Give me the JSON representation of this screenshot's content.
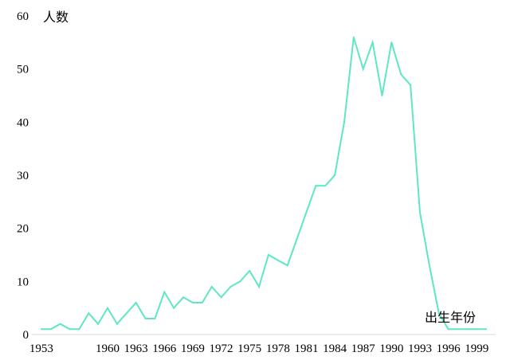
{
  "chart_data": {
    "type": "line",
    "title": "",
    "ylabel": "人数",
    "xlabel": "出生年份",
    "ylim": [
      0,
      60
    ],
    "yticks": [
      0,
      10,
      20,
      30,
      40,
      50,
      60
    ],
    "xlim": [
      1952,
      2001
    ],
    "xticks": [
      1953,
      1960,
      1963,
      1966,
      1969,
      1972,
      1975,
      1978,
      1981,
      1984,
      1987,
      1990,
      1993,
      1996,
      1999
    ],
    "grid": false,
    "line_color": "#5ee6c5",
    "series": [
      {
        "x": [
          1953,
          1954,
          1955,
          1956,
          1957,
          1958,
          1959,
          1960,
          1961,
          1962,
          1963,
          1964,
          1965,
          1966,
          1967,
          1968,
          1969,
          1970,
          1971,
          1972,
          1973,
          1974,
          1975,
          1976,
          1977,
          1978,
          1979,
          1980,
          1981,
          1982,
          1983,
          1984,
          1985,
          1986,
          1987,
          1988,
          1989,
          1990,
          1991,
          1992,
          1993,
          1994,
          1995,
          1996,
          1997,
          1998,
          1999,
          2000
        ],
        "values": [
          1,
          1,
          2,
          1,
          1,
          4,
          2,
          5,
          2,
          4,
          6,
          3,
          3,
          8,
          5,
          7,
          6,
          6,
          9,
          7,
          9,
          10,
          12,
          9,
          15,
          14,
          13,
          18,
          23,
          28,
          28,
          30,
          40,
          56,
          50,
          55,
          45,
          55,
          49,
          47,
          23,
          13,
          4,
          1,
          1,
          1,
          1,
          1
        ]
      }
    ]
  }
}
